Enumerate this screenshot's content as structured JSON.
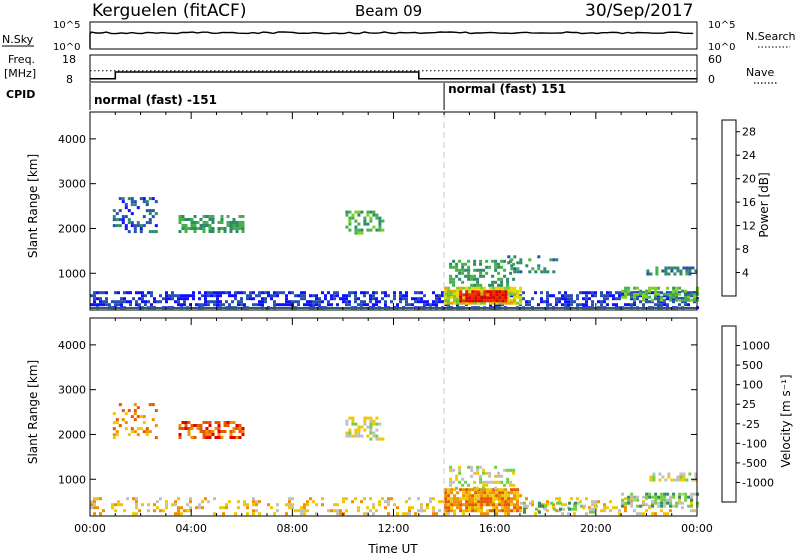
{
  "header": {
    "station": "Kerguelen (fitACF)",
    "beam": "Beam 09",
    "date": "30/Sep/2017"
  },
  "strip_panels": {
    "nsky_label": "N.Sky",
    "nsky_ticks": [
      "10^5",
      "10^0"
    ],
    "nsearch_label": "N.Search",
    "nsearch_ticks": [
      "10^5",
      "10^0"
    ],
    "freq_label": "Freq.",
    "freq_unit": "[MHz]",
    "freq_ticks": [
      18,
      8
    ],
    "nave_label": "Nave",
    "nave_ticks": [
      60,
      0
    ],
    "cpid_label": "CPID",
    "cpid_segments": [
      {
        "label": "normal (fast) -151",
        "start_hour": 0,
        "end_hour": 14
      },
      {
        "label": "normal (fast) 151",
        "start_hour": 14,
        "end_hour": 24
      }
    ],
    "freq_steps": [
      {
        "hour": 0,
        "mhz": 9.2
      },
      {
        "hour": 1,
        "mhz": 11.7
      },
      {
        "hour": 13,
        "mhz": 9.2
      },
      {
        "hour": 24,
        "mhz": 9.2
      }
    ],
    "nave_level": 25
  },
  "chart_data": [
    {
      "type": "heatmap",
      "ylabel": "Slant Range [km]",
      "xlim": [
        0,
        24
      ],
      "ylim": [
        180,
        4600
      ],
      "yticks": [
        1000,
        2000,
        3000,
        4000
      ],
      "colorbar": {
        "label": "Power [dB]",
        "ticks": [
          4,
          8,
          12,
          16,
          20,
          24,
          28
        ],
        "range": [
          0,
          30
        ],
        "colors": [
          "#1010ff",
          "#2850b0",
          "#2e8a6a",
          "#46b04a",
          "#7cd020",
          "#e0d800",
          "#f0a000",
          "#e86000",
          "#ee2a00",
          "#e00000"
        ]
      },
      "features": [
        {
          "h0": 0.0,
          "h1": 24.0,
          "r0": 200,
          "r1": 600,
          "value": 3,
          "density": 0.55
        },
        {
          "h0": 0.9,
          "h1": 2.6,
          "r0": 1900,
          "r1": 2700,
          "value": 5,
          "density": 0.3
        },
        {
          "h0": 3.5,
          "h1": 6.0,
          "r0": 1900,
          "r1": 2300,
          "value": 9,
          "density": 0.55
        },
        {
          "h0": 10.1,
          "h1": 11.6,
          "r0": 1900,
          "r1": 2400,
          "value": 10,
          "density": 0.5
        },
        {
          "h0": 14.0,
          "h1": 17.0,
          "r0": 300,
          "r1": 700,
          "value": 16,
          "density": 0.85
        },
        {
          "h0": 14.6,
          "h1": 16.4,
          "r0": 380,
          "r1": 620,
          "value": 27,
          "density": 0.9
        },
        {
          "h0": 14.2,
          "h1": 16.8,
          "r0": 700,
          "r1": 1300,
          "value": 9,
          "density": 0.45
        },
        {
          "h0": 16.5,
          "h1": 18.5,
          "r0": 1000,
          "r1": 1400,
          "value": 8,
          "density": 0.35
        },
        {
          "h0": 21.0,
          "h1": 24.0,
          "r0": 400,
          "r1": 700,
          "value": 11,
          "density": 0.6
        },
        {
          "h0": 22.0,
          "h1": 24.0,
          "r0": 1000,
          "r1": 1150,
          "value": 7,
          "density": 0.6
        }
      ],
      "x_ticks": [
        "00:00",
        "04:00",
        "08:00",
        "12:00",
        "16:00",
        "20:00",
        "00:00"
      ]
    },
    {
      "type": "heatmap",
      "ylabel": "Slant Range [km]",
      "xlabel": "Time UT",
      "xlim": [
        0,
        24
      ],
      "ylim": [
        180,
        4600
      ],
      "yticks": [
        1000,
        2000,
        3000,
        4000
      ],
      "colorbar": {
        "label": "Velocity [m s⁻¹]",
        "ticks": [
          "1000",
          "500",
          "100",
          "25",
          "-25",
          "-100",
          "-500",
          "-1000"
        ],
        "colors": [
          "#2020d0",
          "#3060b0",
          "#309060",
          "#70d040",
          "#c0c0c0",
          "#f0c800",
          "#f09000",
          "#e85800",
          "#e00000"
        ]
      },
      "features": [
        {
          "h0": 0.0,
          "h1": 24.0,
          "r0": 200,
          "r1": 600,
          "value": 5,
          "density": 0.3
        },
        {
          "h0": 0.9,
          "h1": 2.6,
          "r0": 1900,
          "r1": 2700,
          "value": 6,
          "density": 0.25
        },
        {
          "h0": 3.5,
          "h1": 6.0,
          "r0": 1900,
          "r1": 2300,
          "value": 7,
          "density": 0.5
        },
        {
          "h0": 10.1,
          "h1": 11.6,
          "r0": 1900,
          "r1": 2400,
          "value": 4,
          "density": 0.45
        },
        {
          "h0": 14.0,
          "h1": 17.0,
          "r0": 300,
          "r1": 800,
          "value": 6,
          "density": 0.85
        },
        {
          "h0": 14.2,
          "h1": 16.8,
          "r0": 800,
          "r1": 1300,
          "value": 4,
          "density": 0.35
        },
        {
          "h0": 17.0,
          "h1": 20.0,
          "r0": 250,
          "r1": 500,
          "value": 3,
          "density": 0.35
        },
        {
          "h0": 21.0,
          "h1": 24.0,
          "r0": 400,
          "r1": 700,
          "value": 3,
          "density": 0.5
        },
        {
          "h0": 22.0,
          "h1": 24.0,
          "r0": 1000,
          "r1": 1150,
          "value": 4,
          "density": 0.5
        }
      ],
      "x_ticks": [
        "00:00",
        "04:00",
        "08:00",
        "12:00",
        "16:00",
        "20:00",
        "00:00"
      ]
    }
  ]
}
